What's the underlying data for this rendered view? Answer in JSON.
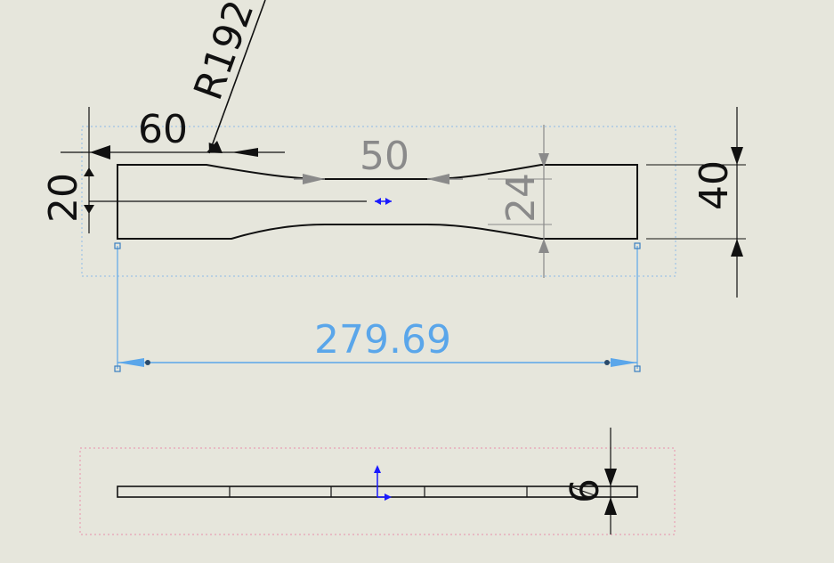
{
  "drawing": {
    "dimensions": {
      "radius": "R192",
      "shoulder_length": "60",
      "grip_width": "20",
      "gauge_length": "50",
      "gauge_width": "24",
      "overall_width": "40",
      "overall_length": "279.69",
      "thickness": "6"
    },
    "colors": {
      "background": "#e6e6dc",
      "geometry": "#111111",
      "driven_dimension": "#5aa6ea",
      "reference_dimension": "#8a8a8a",
      "view_boundary_top": "#9ec3e6",
      "view_boundary_bottom": "#e8a0b4",
      "origin_arrow": "#1a1aff"
    }
  }
}
